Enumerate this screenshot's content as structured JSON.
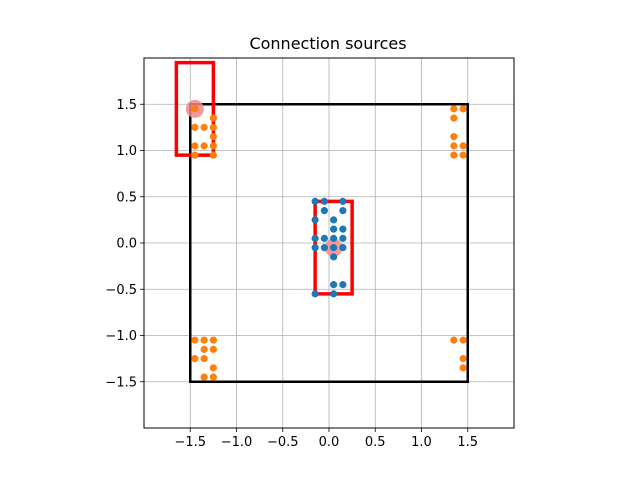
{
  "chart_data": {
    "type": "scatter",
    "title": "Connection sources",
    "xlabel": "",
    "ylabel": "",
    "xlim": [
      -2.0,
      2.0
    ],
    "ylim": [
      -2.0,
      2.0
    ],
    "x_ticks": [
      -1.5,
      -1.0,
      -0.5,
      0.0,
      0.5,
      1.0,
      1.5
    ],
    "y_ticks": [
      -1.5,
      -1.0,
      -0.5,
      0.0,
      0.5,
      1.0,
      1.5
    ],
    "x_tick_labels": [
      "−1.5",
      "−1.0",
      "−0.5",
      "0.0",
      "0.5",
      "1.0",
      "1.5"
    ],
    "y_tick_labels": [
      "−1.5",
      "−1.0",
      "−0.5",
      "0.0",
      "0.5",
      "1.0",
      "1.5"
    ],
    "grid": true,
    "colors": {
      "series_1": "#1f77b4",
      "series_2": "#ff7f0e",
      "rect_red": "#ff0000",
      "rect_black": "#000000",
      "highlight": "#f28b8b",
      "grid": "#b0b0b0"
    },
    "rectangles": [
      {
        "color": "black",
        "x0": -1.5,
        "y0": -1.5,
        "x1": 1.5,
        "y1": 1.5
      },
      {
        "color": "red",
        "x0": -1.65,
        "y0": 0.95,
        "x1": -1.25,
        "y1": 1.95
      },
      {
        "color": "red",
        "x0": -0.15,
        "y0": -0.55,
        "x1": 0.25,
        "y1": 0.45
      }
    ],
    "highlights": [
      {
        "x": -1.45,
        "y": 1.45
      },
      {
        "x": 0.05,
        "y": -0.05
      }
    ],
    "series": [
      {
        "points": [
          [
            -0.15,
            0.45
          ],
          [
            -0.05,
            0.45
          ],
          [
            0.15,
            0.45
          ],
          [
            -0.05,
            0.35
          ],
          [
            0.15,
            0.35
          ],
          [
            -0.15,
            0.25
          ],
          [
            0.05,
            0.25
          ],
          [
            0.05,
            0.15
          ],
          [
            0.15,
            0.15
          ],
          [
            -0.15,
            0.05
          ],
          [
            -0.05,
            0.05
          ],
          [
            0.05,
            0.05
          ],
          [
            0.15,
            0.05
          ],
          [
            -0.15,
            -0.05
          ],
          [
            -0.05,
            -0.05
          ],
          [
            0.05,
            -0.05
          ],
          [
            0.15,
            -0.05
          ],
          [
            0.05,
            -0.15
          ],
          [
            0.05,
            -0.45
          ],
          [
            0.15,
            -0.45
          ],
          [
            -0.15,
            -0.55
          ],
          [
            0.05,
            -0.55
          ]
        ]
      },
      {
        "points": [
          [
            -1.45,
            1.45
          ],
          [
            -1.25,
            1.35
          ],
          [
            -1.45,
            1.25
          ],
          [
            -1.35,
            1.25
          ],
          [
            -1.25,
            1.25
          ],
          [
            -1.25,
            1.15
          ],
          [
            -1.45,
            1.05
          ],
          [
            -1.35,
            1.05
          ],
          [
            -1.25,
            1.05
          ],
          [
            -1.45,
            0.95
          ],
          [
            -1.25,
            0.95
          ],
          [
            1.35,
            1.45
          ],
          [
            1.45,
            1.45
          ],
          [
            1.35,
            1.35
          ],
          [
            1.35,
            1.15
          ],
          [
            1.35,
            1.05
          ],
          [
            1.45,
            1.05
          ],
          [
            1.35,
            0.95
          ],
          [
            1.45,
            0.95
          ],
          [
            -1.45,
            -1.05
          ],
          [
            -1.35,
            -1.05
          ],
          [
            -1.25,
            -1.05
          ],
          [
            -1.35,
            -1.15
          ],
          [
            -1.25,
            -1.15
          ],
          [
            -1.45,
            -1.25
          ],
          [
            -1.35,
            -1.25
          ],
          [
            -1.25,
            -1.35
          ],
          [
            -1.35,
            -1.45
          ],
          [
            -1.25,
            -1.45
          ],
          [
            1.35,
            -1.05
          ],
          [
            1.45,
            -1.05
          ],
          [
            1.45,
            -1.25
          ],
          [
            1.45,
            -1.35
          ]
        ]
      }
    ]
  }
}
